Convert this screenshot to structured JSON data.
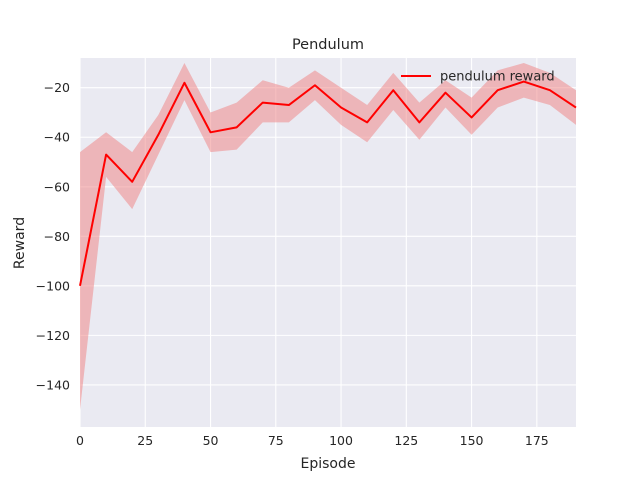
{
  "chart_data": {
    "type": "line",
    "title": "Pendulum",
    "xlabel": "Episode",
    "ylabel": "Reward",
    "xlim": [
      0,
      190
    ],
    "ylim": [
      -157,
      -8
    ],
    "xticks": [
      0,
      25,
      50,
      75,
      100,
      125,
      150,
      175
    ],
    "yticks": [
      -140,
      -120,
      -100,
      -80,
      -60,
      -40,
      -20
    ],
    "grid": true,
    "legend_position": "top-right",
    "series": [
      {
        "name": "pendulum reward",
        "color": "#ff0000",
        "band_color": "#f08080",
        "x": [
          0,
          10,
          20,
          30,
          40,
          50,
          60,
          70,
          80,
          90,
          100,
          110,
          120,
          130,
          140,
          150,
          160,
          170,
          180,
          190
        ],
        "y": [
          -100,
          -47,
          -58,
          -39,
          -18,
          -38,
          -36,
          -26,
          -27,
          -19,
          -28,
          -34,
          -21,
          -34,
          -22,
          -32,
          -21,
          -17.5,
          -21,
          -28
        ],
        "upper": [
          -46,
          -38,
          -46,
          -31,
          -10,
          -30,
          -26,
          -17,
          -20,
          -13,
          -20,
          -27,
          -14,
          -26,
          -17,
          -24,
          -13,
          -10,
          -14,
          -21
        ],
        "lower": [
          -150,
          -56,
          -69,
          -47,
          -25,
          -46,
          -45,
          -34,
          -34,
          -25,
          -35,
          -42,
          -29,
          -41,
          -28,
          -39,
          -28,
          -24,
          -27,
          -35
        ]
      }
    ]
  }
}
